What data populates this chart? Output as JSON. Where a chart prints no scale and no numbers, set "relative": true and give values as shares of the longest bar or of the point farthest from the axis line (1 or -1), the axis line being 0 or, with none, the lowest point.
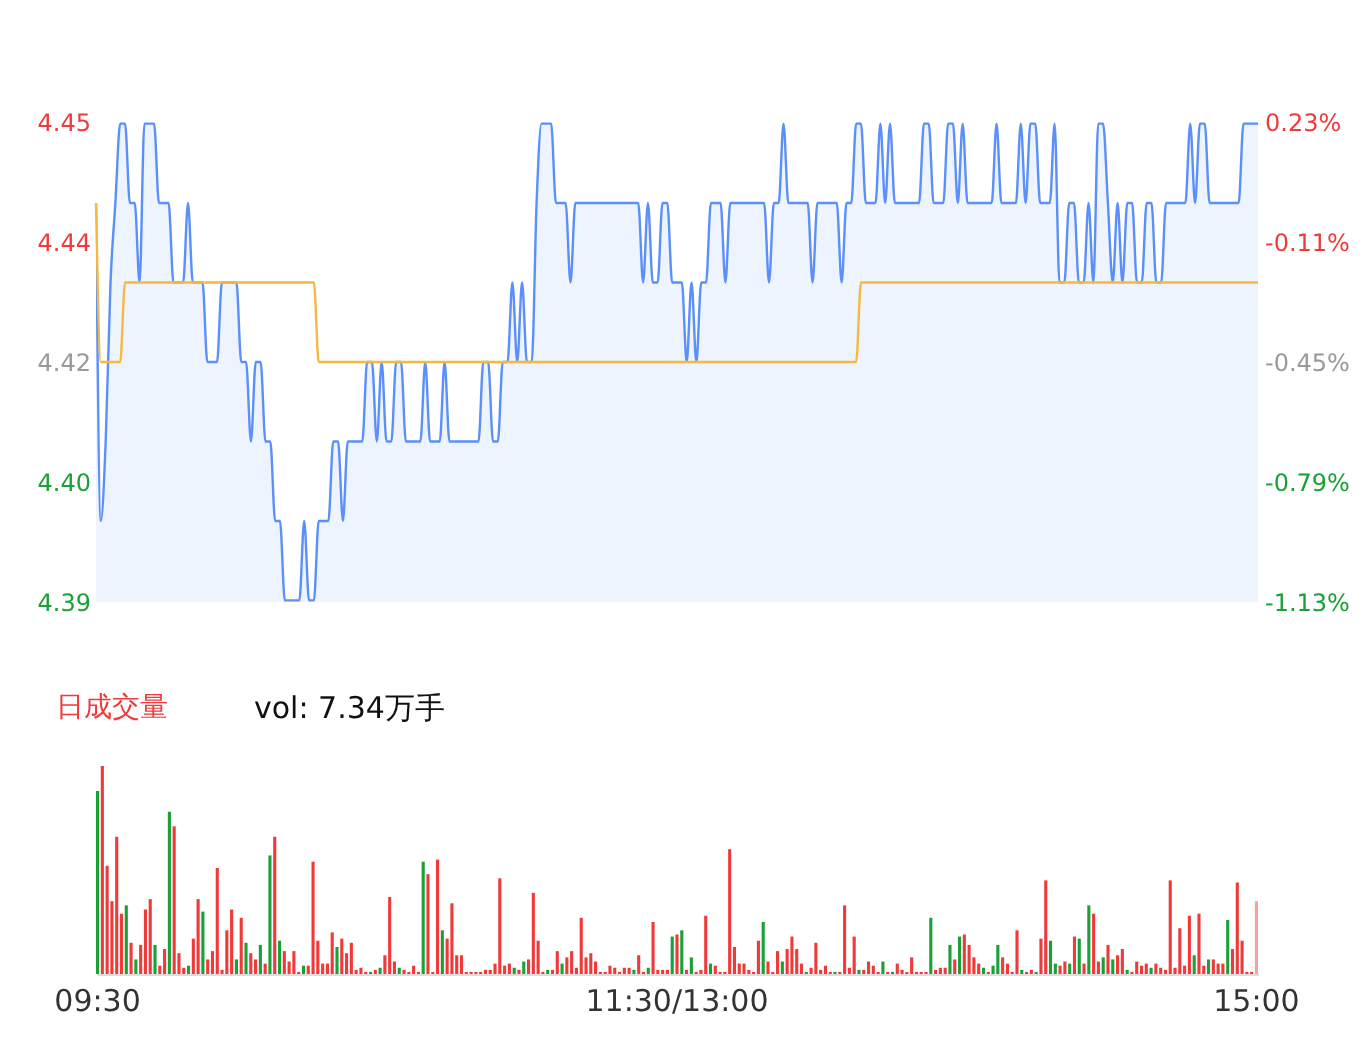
{
  "chart_data": [
    {
      "type": "area",
      "ylim": [
        4.3898,
        4.4502
      ],
      "yticks": [
        {
          "value": 4.4502,
          "label": "4.45"
        },
        {
          "value": 4.4351,
          "label": "4.44"
        },
        {
          "value": 4.42,
          "label": "4.42"
        },
        {
          "value": 4.4049,
          "label": "4.40"
        },
        {
          "value": 4.3898,
          "label": "4.39"
        }
      ],
      "y2lim": [
        -1.13,
        0.23
      ],
      "y2ticks": [
        {
          "value": 0.23,
          "label": "0.23%"
        },
        {
          "value": -0.11,
          "label": "-0.11%"
        },
        {
          "value": -0.45,
          "label": "-0.45%"
        },
        {
          "value": -0.79,
          "label": "-0.79%"
        },
        {
          "value": -1.13,
          "label": "-1.13%"
        }
      ],
      "tick_labels": "y",
      "grid": false,
      "categories": [
        null,
        null,
        null,
        null,
        null,
        null,
        null,
        null,
        null,
        null,
        null,
        null,
        null,
        null,
        null,
        null,
        null,
        null,
        null,
        null,
        null,
        null,
        null,
        null,
        null,
        null,
        null,
        null,
        null,
        null,
        null,
        null,
        null,
        null,
        null,
        null,
        null,
        null,
        null,
        null,
        null,
        null,
        null,
        null,
        null,
        null,
        null,
        null,
        null,
        null,
        null,
        null,
        null,
        null,
        null,
        null,
        null,
        null,
        null,
        null,
        null,
        null,
        null,
        null,
        null,
        null,
        null,
        null,
        null,
        null,
        null,
        null,
        null,
        null,
        null,
        null,
        null,
        null,
        null,
        null,
        null,
        null,
        null,
        null,
        null,
        null,
        null,
        null,
        null,
        null,
        null,
        null,
        null,
        null,
        null,
        null,
        null,
        null,
        null,
        null,
        null,
        null,
        null,
        null,
        null,
        null,
        null,
        null,
        null,
        null,
        null,
        null,
        null,
        null,
        null,
        null,
        null,
        null,
        null,
        null,
        null,
        null,
        null,
        null,
        null,
        null,
        null,
        null,
        null,
        null,
        null,
        null,
        null,
        null,
        null,
        null,
        null,
        null,
        null,
        null,
        null,
        null,
        null,
        null,
        null,
        null,
        null,
        null,
        null,
        null,
        null,
        null,
        null,
        null,
        null,
        null,
        null,
        null,
        null,
        null,
        null,
        null,
        null,
        null,
        null,
        null,
        null,
        null,
        null,
        null,
        null,
        null,
        null,
        null,
        null,
        null,
        null,
        null,
        null,
        null,
        null,
        null,
        null,
        null,
        null,
        null,
        null,
        null,
        null,
        null,
        null,
        null,
        null,
        null,
        null,
        null,
        null,
        null,
        null,
        null,
        null,
        null,
        null,
        null,
        null,
        null,
        null,
        null,
        null,
        null,
        null,
        null,
        null,
        null,
        null,
        null,
        null,
        null,
        null,
        null,
        null,
        null,
        null,
        null,
        null,
        null,
        null,
        null,
        null,
        null,
        null,
        null,
        null,
        null,
        null,
        null,
        null,
        null,
        null,
        null,
        null
      ],
      "series": [
        {
          "type": "area",
          "color": "#5b8ff9",
          "values": [
            4.44,
            4.4,
            4.41,
            4.43,
            4.44,
            4.45,
            4.45,
            4.44,
            4.44,
            4.43,
            4.45,
            4.45,
            4.45,
            4.44,
            4.44,
            4.44,
            4.43,
            4.43,
            4.43,
            4.44,
            4.43,
            4.43,
            4.43,
            4.42,
            4.42,
            4.42,
            4.43,
            4.43,
            4.43,
            4.43,
            4.42,
            4.42,
            4.41,
            4.42,
            4.42,
            4.41,
            4.41,
            4.4,
            4.4,
            4.39,
            4.39,
            4.39,
            4.39,
            4.4,
            4.39,
            4.39,
            4.4,
            4.4,
            4.4,
            4.41,
            4.41,
            4.4,
            4.41,
            4.41,
            4.41,
            4.41,
            4.42,
            4.42,
            4.41,
            4.42,
            4.41,
            4.41,
            4.42,
            4.42,
            4.41,
            4.41,
            4.41,
            4.41,
            4.42,
            4.41,
            4.41,
            4.41,
            4.42,
            4.41,
            4.41,
            4.41,
            4.41,
            4.41,
            4.41,
            4.41,
            4.42,
            4.42,
            4.41,
            4.41,
            4.42,
            4.42,
            4.43,
            4.42,
            4.43,
            4.42,
            4.42,
            4.44,
            4.45,
            4.45,
            4.45,
            4.44,
            4.44,
            4.44,
            4.43,
            4.44,
            4.44,
            4.44,
            4.44,
            4.44,
            4.44,
            4.44,
            4.44,
            4.44,
            4.44,
            4.44,
            4.44,
            4.44,
            4.44,
            4.43,
            4.44,
            4.43,
            4.43,
            4.44,
            4.44,
            4.43,
            4.43,
            4.43,
            4.42,
            4.43,
            4.42,
            4.43,
            4.43,
            4.44,
            4.44,
            4.44,
            4.43,
            4.44,
            4.44,
            4.44,
            4.44,
            4.44,
            4.44,
            4.44,
            4.44,
            4.43,
            4.44,
            4.44,
            4.45,
            4.44,
            4.44,
            4.44,
            4.44,
            4.44,
            4.43,
            4.44,
            4.44,
            4.44,
            4.44,
            4.44,
            4.43,
            4.44,
            4.44,
            4.45,
            4.45,
            4.44,
            4.44,
            4.44,
            4.45,
            4.44,
            4.45,
            4.44,
            4.44,
            4.44,
            4.44,
            4.44,
            4.44,
            4.45,
            4.45,
            4.44,
            4.44,
            4.44,
            4.45,
            4.45,
            4.44,
            4.45,
            4.44,
            4.44,
            4.44,
            4.44,
            4.44,
            4.44,
            4.45,
            4.44,
            4.44,
            4.44,
            4.44,
            4.45,
            4.44,
            4.45,
            4.45,
            4.44,
            4.44,
            4.44,
            4.45,
            4.43,
            4.43,
            4.44,
            4.44,
            4.43,
            4.43,
            4.44,
            4.43,
            4.45,
            4.45,
            4.44,
            4.43,
            4.44,
            4.43,
            4.44,
            4.44,
            4.43,
            4.43,
            4.44,
            4.44,
            4.43,
            4.43,
            4.44,
            4.44,
            4.44,
            4.44,
            4.44,
            4.45,
            4.44,
            4.45,
            4.45,
            4.44,
            4.44,
            4.44,
            4.44,
            4.44,
            4.44,
            4.44,
            4.45,
            4.45,
            4.45,
            4.45
          ]
        },
        {
          "type": "line",
          "color": "#f5b942",
          "values": [
            4.44,
            4.42,
            4.42,
            4.42,
            4.42,
            4.42,
            4.43,
            4.43,
            4.43,
            4.43,
            4.43,
            4.43,
            4.43,
            4.43,
            4.43,
            4.43,
            4.43,
            4.43,
            4.43,
            4.43,
            4.43,
            4.43,
            4.43,
            4.43,
            4.43,
            4.43,
            4.43,
            4.43,
            4.43,
            4.43,
            4.43,
            4.43,
            4.43,
            4.43,
            4.43,
            4.43,
            4.43,
            4.43,
            4.43,
            4.43,
            4.43,
            4.43,
            4.43,
            4.43,
            4.43,
            4.43,
            4.42,
            4.42,
            4.42,
            4.42,
            4.42,
            4.42,
            4.42,
            4.42,
            4.42,
            4.42,
            4.42,
            4.42,
            4.42,
            4.42,
            4.42,
            4.42,
            4.42,
            4.42,
            4.42,
            4.42,
            4.42,
            4.42,
            4.42,
            4.42,
            4.42,
            4.42,
            4.42,
            4.42,
            4.42,
            4.42,
            4.42,
            4.42,
            4.42,
            4.42,
            4.42,
            4.42,
            4.42,
            4.42,
            4.42,
            4.42,
            4.42,
            4.42,
            4.42,
            4.42,
            4.42,
            4.42,
            4.42,
            4.42,
            4.42,
            4.42,
            4.42,
            4.42,
            4.42,
            4.42,
            4.42,
            4.42,
            4.42,
            4.42,
            4.42,
            4.42,
            4.42,
            4.42,
            4.42,
            4.42,
            4.42,
            4.42,
            4.42,
            4.42,
            4.42,
            4.42,
            4.42,
            4.42,
            4.42,
            4.42,
            4.42,
            4.42,
            4.42,
            4.42,
            4.42,
            4.42,
            4.42,
            4.42,
            4.42,
            4.42,
            4.42,
            4.42,
            4.42,
            4.42,
            4.42,
            4.42,
            4.42,
            4.42,
            4.42,
            4.42,
            4.42,
            4.42,
            4.42,
            4.42,
            4.42,
            4.42,
            4.42,
            4.42,
            4.42,
            4.42,
            4.42,
            4.42,
            4.42,
            4.42,
            4.42,
            4.42,
            4.42,
            4.42,
            4.43,
            4.43,
            4.43,
            4.43,
            4.43,
            4.43,
            4.43,
            4.43,
            4.43,
            4.43,
            4.43,
            4.43,
            4.43,
            4.43,
            4.43,
            4.43,
            4.43,
            4.43,
            4.43,
            4.43,
            4.43,
            4.43,
            4.43,
            4.43,
            4.43,
            4.43,
            4.43,
            4.43,
            4.43,
            4.43,
            4.43,
            4.43,
            4.43,
            4.43,
            4.43,
            4.43,
            4.43,
            4.43,
            4.43,
            4.43,
            4.43,
            4.43,
            4.43,
            4.43,
            4.43,
            4.43,
            4.43,
            4.43,
            4.43,
            4.43,
            4.43,
            4.43,
            4.43,
            4.43,
            4.43,
            4.43,
            4.43,
            4.43,
            4.43,
            4.43,
            4.43,
            4.43,
            4.43,
            4.43,
            4.43,
            4.43,
            4.43,
            4.43,
            4.43,
            4.43,
            4.43,
            4.43,
            4.43,
            4.43,
            4.43,
            4.43,
            4.43,
            4.43,
            4.43,
            4.43,
            4.43,
            4.43,
            4.43
          ]
        }
      ]
    },
    {
      "type": "bar",
      "relative": true,
      "tick_labels": "x",
      "grid": false,
      "annotations": [
        "日成交量",
        "vol: 7.34万手"
      ],
      "categories": [
        "09:30",
        null,
        null,
        null,
        null,
        null,
        null,
        null,
        null,
        null,
        null,
        null,
        null,
        null,
        null,
        null,
        null,
        null,
        null,
        null,
        null,
        null,
        null,
        null,
        null,
        null,
        null,
        null,
        null,
        null,
        null,
        null,
        null,
        null,
        null,
        null,
        null,
        null,
        null,
        null,
        null,
        null,
        null,
        null,
        null,
        null,
        null,
        null,
        null,
        null,
        null,
        null,
        null,
        null,
        null,
        null,
        null,
        null,
        null,
        null,
        null,
        null,
        null,
        null,
        null,
        null,
        null,
        null,
        null,
        null,
        null,
        null,
        null,
        null,
        null,
        null,
        null,
        null,
        null,
        null,
        null,
        null,
        null,
        null,
        null,
        null,
        null,
        null,
        null,
        null,
        null,
        null,
        null,
        null,
        null,
        null,
        null,
        null,
        null,
        null,
        null,
        null,
        null,
        null,
        null,
        null,
        null,
        null,
        null,
        null,
        null,
        null,
        null,
        null,
        null,
        null,
        null,
        null,
        null,
        null,
        null,
        "11:30/13:00",
        null,
        null,
        null,
        null,
        null,
        null,
        null,
        null,
        null,
        null,
        null,
        null,
        null,
        null,
        null,
        null,
        null,
        null,
        null,
        null,
        null,
        null,
        null,
        null,
        null,
        null,
        null,
        null,
        null,
        null,
        null,
        null,
        null,
        null,
        null,
        null,
        null,
        null,
        null,
        null,
        null,
        null,
        null,
        null,
        null,
        null,
        null,
        null,
        null,
        null,
        null,
        null,
        null,
        null,
        null,
        null,
        null,
        null,
        null,
        null,
        null,
        null,
        null,
        null,
        null,
        null,
        null,
        null,
        null,
        null,
        null,
        null,
        null,
        null,
        null,
        null,
        null,
        null,
        null,
        null,
        null,
        null,
        null,
        null,
        null,
        null,
        null,
        null,
        null,
        null,
        null,
        null,
        null,
        null,
        null,
        null,
        null,
        null,
        null,
        null,
        null,
        null,
        null,
        null,
        null,
        null,
        null,
        null,
        null,
        null,
        null,
        null,
        null,
        null,
        null,
        null,
        null,
        null,
        null,
        null,
        "15:00"
      ],
      "values": [
        0.88,
        1,
        0.52,
        0.35,
        0.66,
        0.29,
        0.33,
        0.15,
        0.07,
        0.14,
        0.31,
        0.36,
        0.14,
        0.04,
        0.12,
        0.78,
        0.71,
        0.1,
        0.03,
        0.04,
        0.17,
        0.36,
        0.3,
        0.07,
        0.11,
        0.51,
        0.02,
        0.21,
        0.31,
        0.07,
        0.27,
        0.15,
        0.1,
        0.07,
        0.14,
        0.05,
        0.57,
        0.66,
        0.16,
        0.11,
        0.06,
        0.11,
        0.01,
        0.04,
        0.04,
        0.54,
        0.16,
        0.05,
        0.05,
        0.2,
        0.13,
        0.17,
        0.1,
        0.15,
        0.02,
        0.03,
        0.01,
        0.01,
        0.02,
        0.03,
        0.09,
        0.37,
        0.06,
        0.03,
        0.02,
        0.01,
        0.04,
        0.01,
        0.54,
        0.48,
        0.01,
        0.55,
        0.21,
        0.17,
        0.34,
        0.09,
        0.09,
        0.01,
        0.01,
        0.01,
        0.01,
        0.02,
        0.02,
        0.05,
        0.46,
        0.04,
        0.05,
        0.03,
        0.02,
        0.06,
        0.07,
        0.39,
        0.16,
        0.01,
        0.02,
        0.02,
        0.11,
        0.05,
        0.08,
        0.11,
        0.03,
        0.27,
        0.08,
        0.1,
        0.06,
        0.01,
        0.01,
        0.04,
        0.03,
        0.01,
        0.03,
        0.03,
        0.02,
        0.09,
        0.01,
        0.03,
        0.25,
        0.02,
        0.02,
        0.02,
        0.18,
        0.19,
        0.21,
        0.02,
        0.08,
        0.01,
        0.02,
        0.28,
        0.05,
        0.04,
        0.01,
        0.01,
        0.6,
        0.13,
        0.05,
        0.05,
        0.02,
        0.01,
        0.16,
        0.25,
        0.06,
        0.01,
        0.11,
        0.06,
        0.12,
        0.18,
        0.12,
        0.05,
        0.01,
        0.03,
        0.15,
        0.02,
        0.04,
        0.01,
        0.01,
        0.01,
        0.33,
        0.03,
        0.18,
        0.02,
        0.02,
        0.06,
        0.04,
        0.01,
        0.06,
        0.01,
        0.01,
        0.05,
        0.02,
        0.01,
        0.08,
        0.01,
        0.01,
        0.01,
        0.27,
        0.02,
        0.03,
        0.03,
        0.14,
        0.07,
        0.18,
        0.19,
        0.14,
        0.08,
        0.05,
        0.03,
        0.01,
        0.04,
        0.14,
        0.08,
        0.05,
        0.01,
        0.21,
        0.02,
        0.01,
        0.02,
        0.01,
        0.17,
        0.45,
        0.16,
        0.05,
        0.04,
        0.06,
        0.05,
        0.18,
        0.17,
        0.05,
        0.33,
        0.29,
        0.06,
        0.08,
        0.14,
        0.07,
        0.09,
        0.12,
        0.02,
        0.01,
        0.06,
        0.04,
        0.05,
        0.03,
        0.05,
        0.03,
        0.02,
        0.45,
        0.03,
        0.22,
        0.04,
        0.28,
        0.09,
        0.29,
        0.04,
        0.07,
        0.07,
        0.05,
        0.05,
        0.26,
        0.12,
        0.44,
        0.16,
        0.01,
        0.01,
        0.35
      ],
      "colors": [
        "#1aa136",
        "#f03a3a",
        "#f03a3a",
        "#f03a3a",
        "#f03a3a",
        "#f03a3a",
        "#1aa136",
        "#f03a3a",
        "#1aa136",
        "#f03a3a",
        "#f03a3a",
        "#f03a3a",
        "#1aa136",
        "#f03a3a",
        "#f03a3a",
        "#1aa136",
        "#f03a3a",
        "#f03a3a",
        "#f03a3a",
        "#1aa136",
        "#f03a3a",
        "#f03a3a",
        "#1aa136",
        "#f03a3a",
        "#f03a3a",
        "#f03a3a",
        "#f03a3a",
        "#f03a3a",
        "#f03a3a",
        "#1aa136",
        "#f03a3a",
        "#1aa136",
        "#f03a3a",
        "#f03a3a",
        "#1aa136",
        "#f03a3a",
        "#1aa136",
        "#f03a3a",
        "#1aa136",
        "#f03a3a",
        "#f03a3a",
        "#f03a3a",
        "#f03a3a",
        "#1aa136",
        "#f03a3a",
        "#f03a3a",
        "#f03a3a",
        "#f03a3a",
        "#f03a3a",
        "#f03a3a",
        "#1aa136",
        "#f03a3a",
        "#f03a3a",
        "#f03a3a",
        "#f03a3a",
        "#f03a3a",
        "#f03a3a",
        "#1aa136",
        "#f03a3a",
        "#1aa136",
        "#f03a3a",
        "#f03a3a",
        "#f03a3a",
        "#1aa136",
        "#f03a3a",
        "#f03a3a",
        "#f03a3a",
        "#f03a3a",
        "#1aa136",
        "#f03a3a",
        "#f03a3a",
        "#f03a3a",
        "#1aa136",
        "#f03a3a",
        "#f03a3a",
        "#f03a3a",
        "#f03a3a",
        "#f03a3a",
        "#f03a3a",
        "#f03a3a",
        "#f03a3a",
        "#f03a3a",
        "#f03a3a",
        "#f03a3a",
        "#f03a3a",
        "#f03a3a",
        "#f03a3a",
        "#1aa136",
        "#f03a3a",
        "#1aa136",
        "#f03a3a",
        "#f03a3a",
        "#f03a3a",
        "#f03a3a",
        "#1aa136",
        "#f03a3a",
        "#f03a3a",
        "#1aa136",
        "#f03a3a",
        "#f03a3a",
        "#f03a3a",
        "#f03a3a",
        "#f03a3a",
        "#f03a3a",
        "#f03a3a",
        "#f03a3a",
        "#f03a3a",
        "#f03a3a",
        "#f03a3a",
        "#f03a3a",
        "#f03a3a",
        "#f03a3a",
        "#1aa136",
        "#f03a3a",
        "#f03a3a",
        "#1aa136",
        "#f03a3a",
        "#f03a3a",
        "#f03a3a",
        "#f03a3a",
        "#1aa136",
        "#f03a3a",
        "#1aa136",
        "#f03a3a",
        "#1aa136",
        "#f03a3a",
        "#f03a3a",
        "#f03a3a",
        "#1aa136",
        "#f03a3a",
        "#f03a3a",
        "#f03a3a",
        "#f03a3a",
        "#f03a3a",
        "#f03a3a",
        "#f03a3a",
        "#f03a3a",
        "#f03a3a",
        "#f03a3a",
        "#1aa136",
        "#f03a3a",
        "#f03a3a",
        "#f03a3a",
        "#1aa136",
        "#f03a3a",
        "#f03a3a",
        "#f03a3a",
        "#f03a3a",
        "#1aa136",
        "#f03a3a",
        "#f03a3a",
        "#f03a3a",
        "#f03a3a",
        "#f03a3a",
        "#1aa136",
        "#f03a3a",
        "#f03a3a",
        "#f03a3a",
        "#f03a3a",
        "#1aa136",
        "#f03a3a",
        "#f03a3a",
        "#f03a3a",
        "#f03a3a",
        "#1aa136",
        "#f03a3a",
        "#1aa136",
        "#f03a3a",
        "#f03a3a",
        "#f03a3a",
        "#f03a3a",
        "#f03a3a",
        "#f03a3a",
        "#f03a3a",
        "#1aa136",
        "#f03a3a",
        "#f03a3a",
        "#f03a3a",
        "#1aa136",
        "#f03a3a",
        "#1aa136",
        "#f03a3a",
        "#f03a3a",
        "#f03a3a",
        "#f03a3a",
        "#1aa136",
        "#f03a3a",
        "#1aa136",
        "#1aa136",
        "#f03a3a",
        "#f03a3a",
        "#f03a3a",
        "#f03a3a",
        "#1aa136",
        "#f03a3a",
        "#f03a3a",
        "#1aa136",
        "#f03a3a",
        "#f03a3a",
        "#1aa136",
        "#1aa136",
        "#f03a3a",
        "#f03a3a",
        "#1aa136",
        "#f03a3a",
        "#1aa136",
        "#f03a3a",
        "#1aa136",
        "#f03a3a",
        "#f03a3a",
        "#1aa136",
        "#f03a3a",
        "#1aa136",
        "#f03a3a",
        "#f03a3a",
        "#1aa136",
        "#f03a3a",
        "#f03a3a",
        "#f03a3a",
        "#f03a3a",
        "#1aa136",
        "#f03a3a",
        "#f03a3a",
        "#f03a3a",
        "#f03a3a",
        "#f03a3a",
        "#f03a3a",
        "#f03a3a",
        "#f03a3a",
        "#1aa136",
        "#f03a3a",
        "#f03a3a",
        "#1aa136",
        "#f03a3a",
        "#f03a3a",
        "#f03a3a",
        "#1aa136",
        "#f03a3a",
        "#f03a3a",
        "#f03a3a",
        "#f03a3a",
        "#f03a3a",
        "#f7a1a1"
      ]
    }
  ]
}
